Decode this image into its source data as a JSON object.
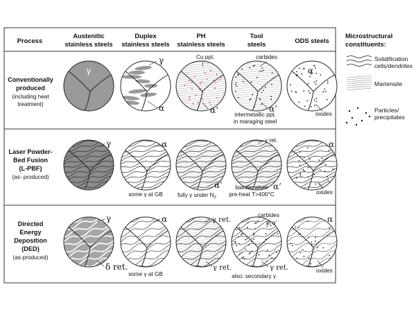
{
  "columns": {
    "process": "Process",
    "austenitic": [
      "Austenitic",
      "stainless steels"
    ],
    "duplex": [
      "Duplex",
      "stainless steels"
    ],
    "ph": [
      "PH",
      "stainless steels"
    ],
    "tool": [
      "Tool",
      "steels"
    ],
    "ods": "ODS steels"
  },
  "rows": {
    "conventional": {
      "title": [
        "Conventionally",
        "produced"
      ],
      "sub": [
        "(including heat",
        "treatment)"
      ]
    },
    "lpbf": {
      "title": [
        "Laser Powder-",
        "Bed Fusion",
        "(L-PBF)"
      ],
      "sub": [
        "(as- produced)"
      ]
    },
    "ded": {
      "title": [
        "Directed",
        "Energy",
        "Deposition",
        "(DED)"
      ],
      "sub": [
        "(as-produced)"
      ]
    }
  },
  "labels": {
    "gamma": "γ",
    "alpha": "α",
    "alpha_prime": "α’",
    "gamma_ret": "γ ret.",
    "delta_ret": "δ ret.",
    "cu_ppt": "Cu ppt.",
    "carbides": "carbides",
    "intermetallic": [
      "intermetallic ppt.",
      "in maraging steel"
    ],
    "oxides": "oxides",
    "some_gamma_gb": "some γ at GB",
    "fully_gamma": "fully γ under N",
    "n2_sub": "2",
    "bainitic": [
      "bainitic when",
      "pre-heat T>400°C"
    ],
    "carbides_in": [
      "carbides",
      "in α’"
    ],
    "secondary": "also: secondary γ"
  },
  "legend": {
    "title": [
      "Microstructural",
      "constituents:"
    ],
    "items": [
      {
        "label": [
          "Solidification",
          "cells/dendrites"
        ]
      },
      {
        "label": [
          "Martensite"
        ]
      },
      {
        "label": [
          "Particles/",
          "precipitates"
        ]
      }
    ]
  }
}
